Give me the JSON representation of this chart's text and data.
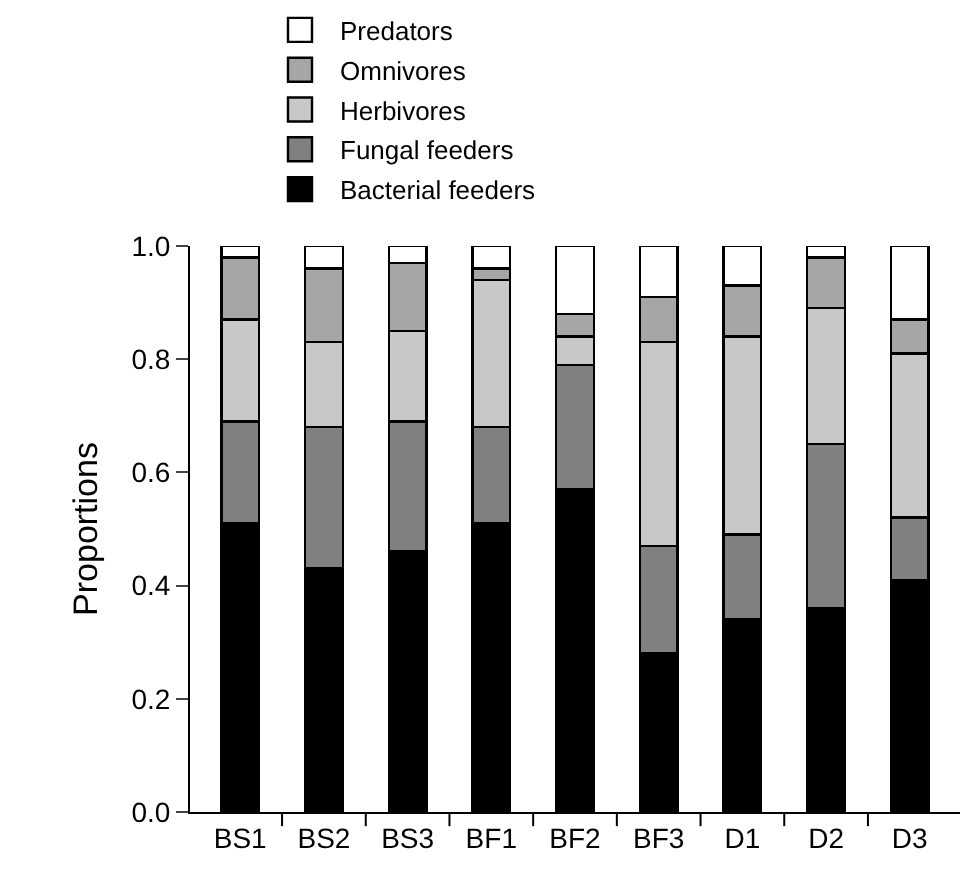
{
  "chart_data": {
    "type": "bar",
    "stacked": true,
    "ylabel": "Proportions",
    "categories": [
      "BS1",
      "BS2",
      "BS3",
      "BF1",
      "BF2",
      "BF3",
      "D1",
      "D2",
      "D3"
    ],
    "series": [
      {
        "name": "Bacterial feeders",
        "color": "#000000",
        "values": [
          0.51,
          0.43,
          0.46,
          0.51,
          0.57,
          0.28,
          0.34,
          0.36,
          0.41
        ]
      },
      {
        "name": "Fungal feeders",
        "color": "#808080",
        "values": [
          0.18,
          0.25,
          0.23,
          0.17,
          0.22,
          0.19,
          0.15,
          0.29,
          0.11
        ]
      },
      {
        "name": "Herbivores",
        "color": "#c8c8c8",
        "values": [
          0.18,
          0.15,
          0.16,
          0.26,
          0.05,
          0.36,
          0.35,
          0.24,
          0.29
        ]
      },
      {
        "name": "Omnivores",
        "color": "#a6a6a6",
        "values": [
          0.11,
          0.13,
          0.12,
          0.02,
          0.04,
          0.08,
          0.09,
          0.09,
          0.06
        ]
      },
      {
        "name": "Predators",
        "color": "#ffffff",
        "values": [
          0.02,
          0.04,
          0.03,
          0.04,
          0.12,
          0.09,
          0.07,
          0.02,
          0.13
        ]
      }
    ],
    "ylim": [
      0,
      1
    ],
    "yticks": [
      {
        "value": 0,
        "label": "0.0"
      },
      {
        "value": 0.2,
        "label": "0.2"
      },
      {
        "value": 0.4,
        "label": "0.4"
      },
      {
        "value": 0.6,
        "label": "0.6"
      },
      {
        "value": 0.8,
        "label": "0.8"
      },
      {
        "value": 1,
        "label": "1.0"
      }
    ],
    "grid": false,
    "legend": "top"
  }
}
